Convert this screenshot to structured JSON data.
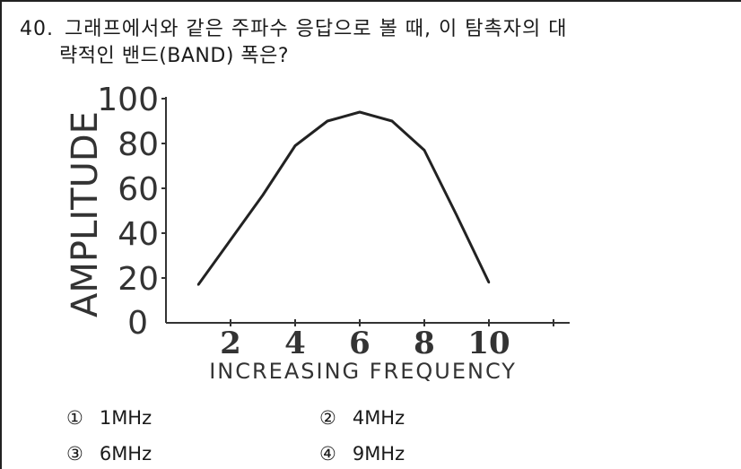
{
  "question": {
    "number": "40.",
    "line1": "그래프에서와 같은 주파수 응답으로 볼 때, 이 탐촉자의 대",
    "line2": "략적인 밴드(BAND) 폭은?"
  },
  "options": [
    {
      "mark": "①",
      "text": "1MHz"
    },
    {
      "mark": "②",
      "text": "4MHz"
    },
    {
      "mark": "③",
      "text": "6MHz"
    },
    {
      "mark": "④",
      "text": "9MHz"
    }
  ],
  "chart_data": {
    "type": "line",
    "title": "",
    "xlabel": "INCREASING FREQUENCY",
    "ylabel": "AMPLITUDE",
    "x_ticks": [
      2,
      4,
      6,
      8,
      10
    ],
    "y_ticks": [
      0,
      20,
      40,
      60,
      80,
      100
    ],
    "xlim": [
      0,
      12.5
    ],
    "ylim": [
      0,
      100
    ],
    "grid": false,
    "series": [
      {
        "x": [
          1,
          2,
          3,
          4,
          5,
          6,
          7,
          8,
          9,
          10
        ],
        "y": [
          17,
          37,
          57,
          79,
          90,
          94,
          90,
          77,
          48,
          18
        ]
      }
    ]
  }
}
